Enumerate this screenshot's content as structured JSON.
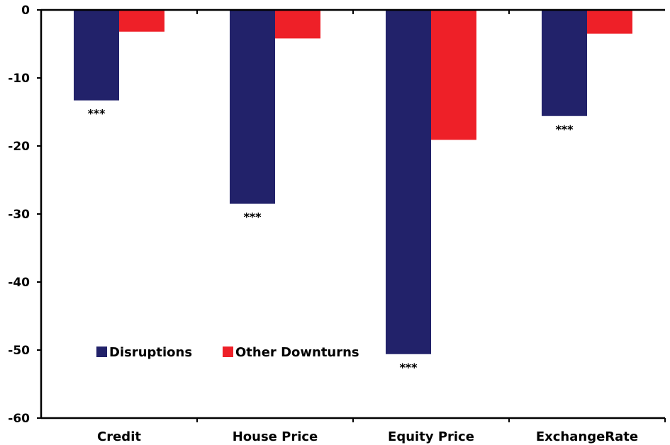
{
  "chart_data": {
    "type": "bar",
    "categories": [
      "Credit",
      "House Price",
      "Equity Price",
      "ExchangeRate"
    ],
    "series": [
      {
        "name": "Disruptions",
        "color": "#22226a",
        "values": [
          -13.3,
          -28.5,
          -50.6,
          -15.6
        ]
      },
      {
        "name": "Other Downturns",
        "color": "#ee2028",
        "values": [
          -3.2,
          -4.2,
          -19.1,
          -3.5
        ]
      }
    ],
    "annotations": [
      "***",
      "***",
      "***",
      "***"
    ],
    "ylim": [
      -60,
      0
    ],
    "yticks": [
      0,
      -10,
      -20,
      -30,
      -40,
      -50,
      -60
    ],
    "ytick_labels": [
      "0",
      "-10",
      "-20",
      "-30",
      "-40",
      "-50",
      "-60"
    ],
    "title": "",
    "xlabel": "",
    "ylabel": "",
    "grid": false,
    "legend_position": "lower-left"
  }
}
